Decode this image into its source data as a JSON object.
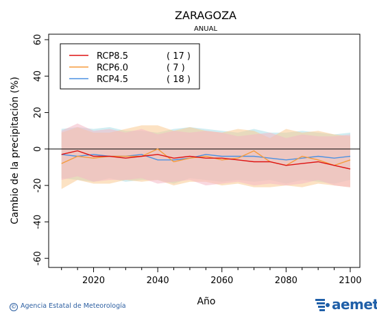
{
  "chart_data": {
    "type": "line",
    "title": "ZARAGOZA",
    "subtitle": "ANUAL",
    "xlabel": "Año",
    "ylabel": "Cambio de la precipitación (%)",
    "xlim": [
      2006,
      2103
    ],
    "ylim": [
      -65,
      63
    ],
    "xticks": [
      2020,
      2040,
      2060,
      2080,
      2100
    ],
    "yticks": [
      -60,
      -40,
      -20,
      0,
      20,
      40,
      60
    ],
    "reference_line": 0,
    "legend_position": "top-left",
    "x": [
      2010,
      2015,
      2020,
      2025,
      2030,
      2035,
      2040,
      2045,
      2050,
      2055,
      2060,
      2065,
      2070,
      2075,
      2080,
      2085,
      2090,
      2095,
      2100
    ],
    "series": [
      {
        "name": "RCP8.5",
        "count": "( 17 )",
        "color": "#dd1111",
        "values": [
          -3,
          -1,
          -4,
          -4,
          -5,
          -4,
          -3,
          -5,
          -4,
          -5,
          -5,
          -6,
          -7,
          -7,
          -9,
          -8,
          -7,
          -9,
          -11
        ],
        "band_upper": [
          10,
          14,
          10,
          11,
          9,
          11,
          8,
          10,
          9,
          10,
          9,
          7,
          8,
          9,
          6,
          8,
          7,
          7,
          8
        ],
        "band_lower": [
          -17,
          -15,
          -18,
          -17,
          -17,
          -16,
          -19,
          -18,
          -17,
          -20,
          -19,
          -18,
          -20,
          -19,
          -20,
          -19,
          -17,
          -20,
          -21
        ],
        "band_color": "#f4b8c4"
      },
      {
        "name": "RCP6.0",
        "count": "(   7 )",
        "color": "#f59a3a",
        "values": [
          -8,
          -4,
          -5,
          -4,
          -4,
          -4,
          0,
          -7,
          -5,
          -4,
          -6,
          -5,
          -1,
          -7,
          -9,
          -4,
          -6,
          -9,
          -6
        ],
        "band_upper": [
          9,
          12,
          9,
          9,
          11,
          13,
          13,
          10,
          12,
          10,
          9,
          11,
          10,
          6,
          11,
          9,
          10,
          8,
          7
        ],
        "band_lower": [
          -22,
          -17,
          -19,
          -19,
          -17,
          -18,
          -17,
          -20,
          -18,
          -18,
          -20,
          -19,
          -21,
          -21,
          -20,
          -21,
          -19,
          -20,
          -21
        ],
        "band_color": "#f9ca92"
      },
      {
        "name": "RCP4.5",
        "count": "( 18 )",
        "color": "#4a90e2",
        "values": [
          -3,
          -4,
          -3,
          -4,
          -4,
          -3,
          -6,
          -6,
          -5,
          -3,
          -4,
          -4,
          -4,
          -5,
          -6,
          -5,
          -4,
          -5,
          -4
        ],
        "band_upper": [
          11,
          12,
          11,
          12,
          10,
          10,
          9,
          11,
          12,
          11,
          10,
          9,
          11,
          9,
          9,
          10,
          9,
          8,
          9
        ],
        "band_lower": [
          -16,
          -17,
          -18,
          -16,
          -18,
          -17,
          -17,
          -19,
          -16,
          -17,
          -18,
          -17,
          -18,
          -17,
          -19,
          -17,
          -18,
          -19,
          -17
        ],
        "band_color": "#a9dfe8"
      }
    ]
  },
  "footer": {
    "copyright_symbol": "©",
    "agency": "Agencia Estatal de Meteorología",
    "logo_text": "aemet"
  }
}
